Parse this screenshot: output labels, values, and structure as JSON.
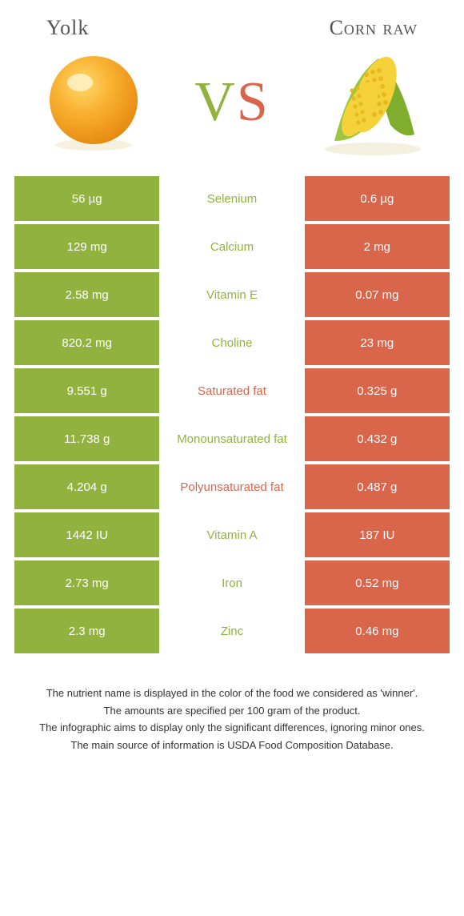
{
  "header": {
    "left_title": "Yolk",
    "right_title": "Corn raw",
    "vs_v": "V",
    "vs_s": "S"
  },
  "colors": {
    "green": "#92b23f",
    "orange": "#d9654b",
    "bg": "#ffffff"
  },
  "rows": [
    {
      "left": "56 µg",
      "label": "Selenium",
      "right": "0.6 µg",
      "winner": "left"
    },
    {
      "left": "129 mg",
      "label": "Calcium",
      "right": "2 mg",
      "winner": "left"
    },
    {
      "left": "2.58 mg",
      "label": "Vitamin E",
      "right": "0.07 mg",
      "winner": "left"
    },
    {
      "left": "820.2 mg",
      "label": "Choline",
      "right": "23 mg",
      "winner": "left"
    },
    {
      "left": "9.551 g",
      "label": "Saturated fat",
      "right": "0.325 g",
      "winner": "right"
    },
    {
      "left": "11.738 g",
      "label": "Monounsaturated fat",
      "right": "0.432 g",
      "winner": "left"
    },
    {
      "left": "4.204 g",
      "label": "Polyunsaturated fat",
      "right": "0.487 g",
      "winner": "right"
    },
    {
      "left": "1442 IU",
      "label": "Vitamin A",
      "right": "187 IU",
      "winner": "left"
    },
    {
      "left": "2.73 mg",
      "label": "Iron",
      "right": "0.52 mg",
      "winner": "left"
    },
    {
      "left": "2.3 mg",
      "label": "Zinc",
      "right": "0.46 mg",
      "winner": "left"
    }
  ],
  "footer": {
    "line1": "The nutrient name is displayed in the color of the food we considered as 'winner'.",
    "line2": "The amounts are specified per 100 gram of the product.",
    "line3": "The infographic aims to display only the significant differences, ignoring minor ones.",
    "line4": "The main source of information is USDA Food Composition Database."
  }
}
